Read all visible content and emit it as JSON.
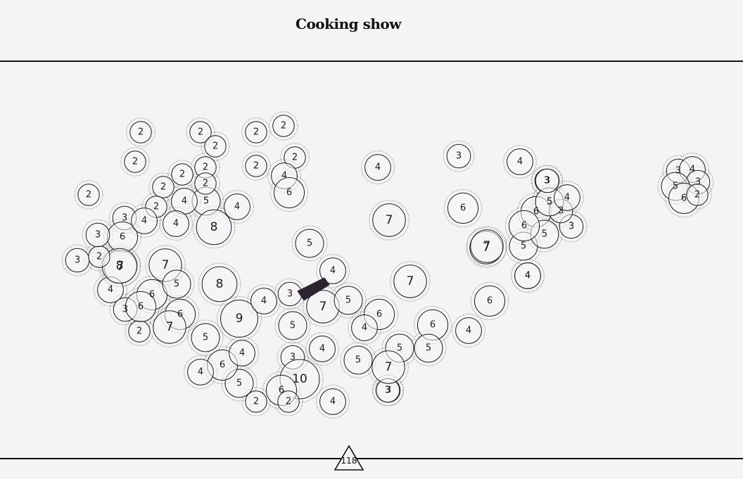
{
  "header": {
    "title": "Cooking show"
  },
  "footer": {
    "page_number": "118"
  },
  "colors": {
    "background": "#f5f4f5",
    "ink": "#1c1c1c",
    "edge": "#2b2530"
  },
  "nodes": [
    {
      "label": "2"
    },
    {
      "label": "2"
    },
    {
      "label": "2"
    },
    {
      "label": "2"
    },
    {
      "label": "2"
    },
    {
      "label": "2"
    },
    {
      "label": "2"
    },
    {
      "label": "2"
    },
    {
      "label": "2"
    },
    {
      "label": "2"
    },
    {
      "label": "2"
    },
    {
      "label": "2"
    },
    {
      "label": "4"
    },
    {
      "label": "6"
    },
    {
      "label": "5"
    },
    {
      "label": "4"
    },
    {
      "label": "2"
    },
    {
      "label": "4"
    },
    {
      "label": "4"
    },
    {
      "label": "3"
    },
    {
      "label": "4"
    },
    {
      "label": "3"
    },
    {
      "label": "5"
    },
    {
      "label": "8"
    },
    {
      "label": "3"
    },
    {
      "label": "6"
    },
    {
      "label": "7"
    },
    {
      "label": "7"
    },
    {
      "label": "6"
    },
    {
      "label": "6"
    },
    {
      "label": "3"
    },
    {
      "label": "2"
    },
    {
      "label": "8"
    },
    {
      "label": "7"
    },
    {
      "label": "5"
    },
    {
      "label": "4"
    },
    {
      "label": "8"
    },
    {
      "label": "5"
    },
    {
      "label": "6"
    },
    {
      "label": "3"
    },
    {
      "label": "6"
    },
    {
      "label": "2"
    },
    {
      "label": "7"
    },
    {
      "label": "9"
    },
    {
      "label": "4"
    },
    {
      "label": "3"
    },
    {
      "label": "4"
    },
    {
      "label": "7"
    },
    {
      "label": "5"
    },
    {
      "label": "5"
    },
    {
      "label": "6"
    },
    {
      "label": "4"
    },
    {
      "label": "6"
    },
    {
      "label": "4"
    },
    {
      "label": "4"
    },
    {
      "label": "6"
    },
    {
      "label": "5"
    },
    {
      "label": "7"
    },
    {
      "label": "7"
    },
    {
      "label": "5"
    },
    {
      "label": "5"
    },
    {
      "label": "3"
    },
    {
      "label": "4"
    },
    {
      "label": "4"
    },
    {
      "label": "5"
    },
    {
      "label": "6"
    },
    {
      "label": "3"
    },
    {
      "label": "10"
    },
    {
      "label": "6"
    },
    {
      "label": "2"
    },
    {
      "label": "2"
    },
    {
      "label": "4"
    },
    {
      "label": "3"
    },
    {
      "label": "3"
    },
    {
      "label": "4"
    },
    {
      "label": "4"
    },
    {
      "label": "6"
    },
    {
      "label": "4"
    },
    {
      "label": "5"
    },
    {
      "label": "7"
    },
    {
      "label": "3"
    },
    {
      "label": "3"
    },
    {
      "label": "5"
    },
    {
      "label": "6"
    },
    {
      "label": "5"
    },
    {
      "label": "7"
    },
    {
      "label": "3"
    },
    {
      "label": "4"
    },
    {
      "label": "3"
    },
    {
      "label": "4"
    },
    {
      "label": "5"
    },
    {
      "label": "6"
    },
    {
      "label": "2"
    },
    {
      "label": "3"
    },
    {
      "label": "2"
    },
    {
      "label": "5"
    },
    {
      "label": "4"
    }
  ]
}
